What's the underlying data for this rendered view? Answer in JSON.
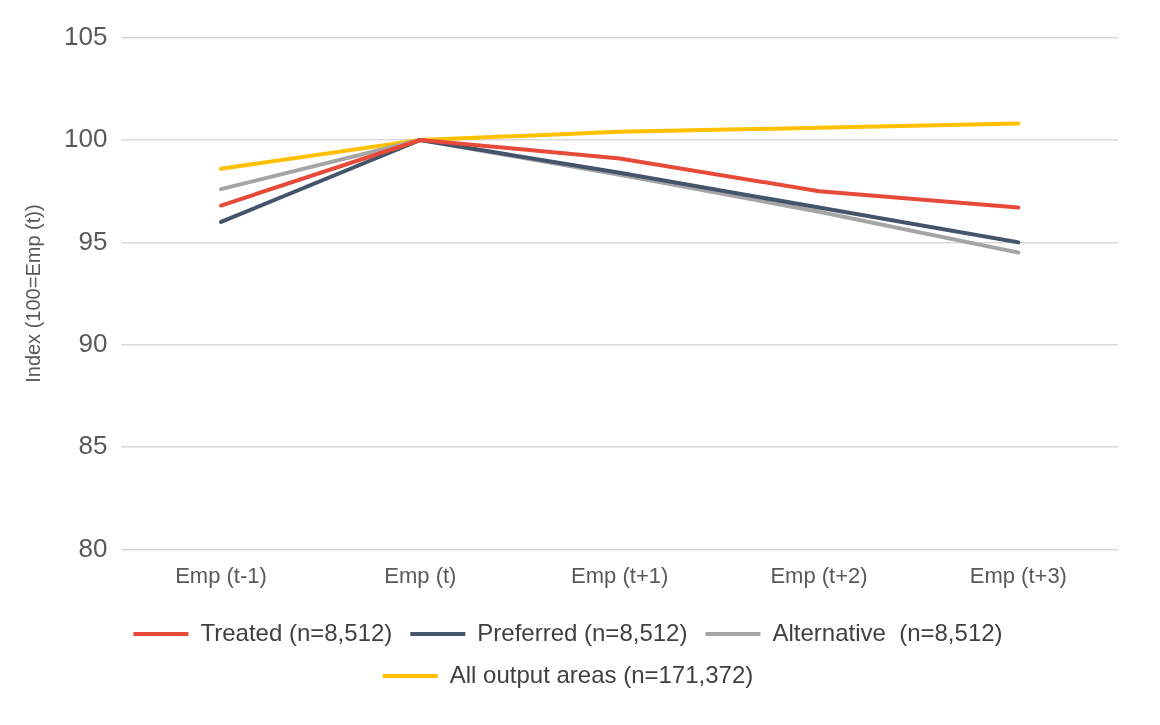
{
  "chart_data": {
    "type": "line",
    "ylabel": "Index (100=Emp (t))",
    "categories": [
      "Emp (t-1)",
      "Emp (t)",
      "Emp (t+1)",
      "Emp (t+2)",
      "Emp (t+3)"
    ],
    "series": [
      {
        "name": "Treated (n=8,512)",
        "color": "#e84a3a",
        "values": [
          96.8,
          100,
          99.1,
          97.5,
          96.7
        ]
      },
      {
        "name": "Preferred (n=8,512)",
        "color": "#44546a",
        "values": [
          96.0,
          100,
          98.4,
          96.7,
          95.0
        ]
      },
      {
        "name": "Alternative  (n=8,512)",
        "color": "#a5a5a5",
        "values": [
          97.6,
          100,
          98.3,
          96.5,
          94.5
        ]
      },
      {
        "name": "All output areas (n=171,372)",
        "color": "#ffc000",
        "values": [
          98.6,
          100,
          100.4,
          100.6,
          100.8
        ]
      }
    ],
    "ylim": [
      80,
      105
    ],
    "yticks": [
      80,
      85,
      90,
      95,
      100,
      105
    ],
    "grid": "y",
    "legend": "bottom",
    "marker": "none",
    "line_style": "solid"
  }
}
